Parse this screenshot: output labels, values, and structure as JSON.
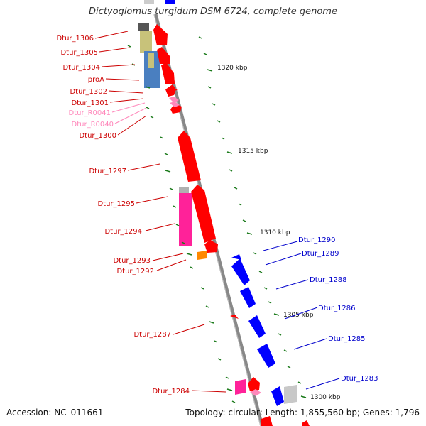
{
  "title": "Dictyoglomus turgidum DSM 6724, complete genome",
  "footer": {
    "accession": "Accession: NC_011661",
    "summary": "Topology: circular; Length: 1,855,560 bp; Genes: 1,796"
  },
  "colors": {
    "forward": "#ff0000",
    "reverse": "#0000ff",
    "rna": "#ff77bb",
    "magenta": "#ff2299",
    "olive": "#c8c27a",
    "steel": "#4a7fc0",
    "orange": "#ff8800",
    "gray": "#aaaaaa",
    "tick": "#1a7a1a",
    "backbone": "#888888",
    "label_forward": "#cc0000",
    "label_reverse": "#0000cc",
    "label_rna": "#ff88bb"
  },
  "scale_labels": [
    "1320 kbp",
    "1315 kbp",
    "1310 kbp",
    "1305 kbp",
    "1300 kbp"
  ],
  "genes_forward": [
    "Dtur_1306",
    "Dtur_1305",
    "Dtur_1304",
    "proA",
    "Dtur_1302",
    "Dtur_1301",
    "Dtur_1300",
    "Dtur_1297",
    "Dtur_1295",
    "Dtur_1294",
    "Dtur_1293",
    "Dtur_1292",
    "Dtur_1287",
    "Dtur_1284"
  ],
  "genes_rna": [
    "Dtur_R0041",
    "Dtur_R0040"
  ],
  "genes_reverse": [
    "Dtur_1290",
    "Dtur_1289",
    "Dtur_1288",
    "Dtur_1286",
    "Dtur_1285",
    "Dtur_1283"
  ]
}
